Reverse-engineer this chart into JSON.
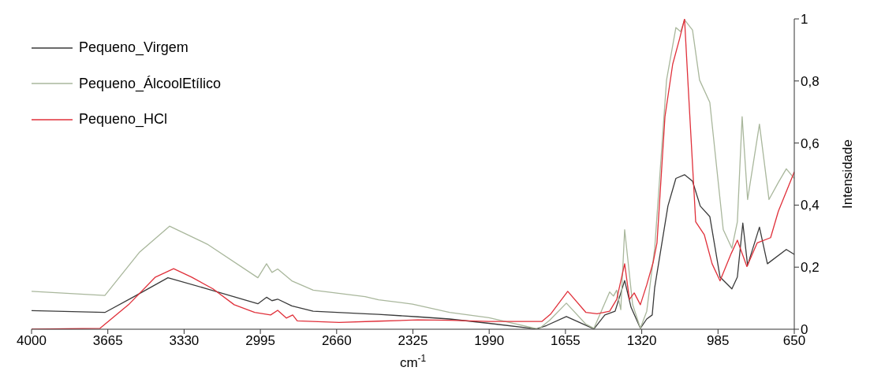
{
  "chart_data": {
    "type": "line",
    "xlabel": "cm$^{-1}$",
    "ylabel": "Intensidade",
    "xlim": [
      4000,
      650
    ],
    "xticks": [
      4000,
      3665,
      3330,
      2995,
      2660,
      2325,
      1990,
      1655,
      1320,
      985,
      650
    ],
    "ylim": [
      0,
      1
    ],
    "yticks": [
      0,
      {
        "value": 0.2,
        "label": "0,2"
      },
      {
        "value": 0.4,
        "label": "0,4"
      },
      {
        "value": 0.6,
        "label": "0,6"
      },
      {
        "value": 0.8,
        "label": "0,8"
      },
      1
    ],
    "legend": "top left",
    "grid": false,
    "marker": "none",
    "line_style": "solid",
    "series": [
      {
        "name": "Pequeno_Virgem",
        "color": "#3a3a3a",
        "x": [
          4000,
          3678,
          3550,
          3401,
          3228,
          3006,
          2968,
          2944,
          2919,
          2857,
          2763,
          2535,
          2476,
          2303,
          2164,
          1991,
          1783,
          1738,
          1651,
          1551,
          1530,
          1482,
          1437,
          1395,
          1367,
          1326,
          1298,
          1274,
          1263,
          1205,
          1170,
          1132,
          1097,
          1063,
          1021,
          976,
          924,
          900,
          876,
          855,
          803,
          768,
          685,
          650
        ],
        "values": [
          0.06,
          0.054,
          0.105,
          0.166,
          0.13,
          0.082,
          0.103,
          0.092,
          0.097,
          0.075,
          0.058,
          0.05,
          0.048,
          0.04,
          0.033,
          0.019,
          0.001,
          0.012,
          0.041,
          0.008,
          0.001,
          0.046,
          0.058,
          0.157,
          0.071,
          0.003,
          0.033,
          0.046,
          0.135,
          0.397,
          0.486,
          0.498,
          0.477,
          0.397,
          0.363,
          0.168,
          0.13,
          0.168,
          0.342,
          0.206,
          0.329,
          0.211,
          0.257,
          0.241
        ]
      },
      {
        "name": "Pequeno_ÁlcoolEtílico",
        "color": "#a9b79c",
        "x": [
          4000,
          3678,
          3525,
          3394,
          3228,
          3006,
          2968,
          2944,
          2919,
          2857,
          2763,
          2535,
          2476,
          2327,
          2164,
          1991,
          1773,
          1724,
          1651,
          1565,
          1530,
          1461,
          1444,
          1430,
          1412,
          1395,
          1360,
          1326,
          1298,
          1263,
          1211,
          1170,
          1149,
          1132,
          1097,
          1066,
          1021,
          962,
          924,
          900,
          879,
          855,
          803,
          761,
          720,
          685,
          650
        ],
        "values": [
          0.122,
          0.109,
          0.249,
          0.332,
          0.274,
          0.166,
          0.211,
          0.183,
          0.194,
          0.156,
          0.126,
          0.105,
          0.095,
          0.081,
          0.054,
          0.037,
          0.0,
          0.029,
          0.084,
          0.016,
          0.003,
          0.12,
          0.107,
          0.126,
          0.063,
          0.321,
          0.08,
          0.003,
          0.058,
          0.261,
          0.803,
          0.972,
          0.959,
          0.997,
          0.964,
          0.803,
          0.731,
          0.321,
          0.261,
          0.346,
          0.685,
          0.418,
          0.661,
          0.418,
          0.473,
          0.517,
          0.486
        ]
      },
      {
        "name": "Pequeno_HCl",
        "color": "#e0303a",
        "x": [
          4000,
          3699,
          3574,
          3456,
          3376,
          3297,
          3203,
          3110,
          3020,
          2950,
          2919,
          2881,
          2853,
          2833,
          2649,
          2476,
          2303,
          2164,
          1991,
          1759,
          1721,
          1645,
          1565,
          1516,
          1461,
          1430,
          1395,
          1374,
          1353,
          1326,
          1298,
          1270,
          1253,
          1218,
          1184,
          1153,
          1132,
          1115,
          1083,
          1045,
          1011,
          976,
          927,
          900,
          858,
          813,
          754,
          720,
          650
        ],
        "values": [
          0.0,
          0.003,
          0.079,
          0.168,
          0.195,
          0.168,
          0.13,
          0.079,
          0.054,
          0.046,
          0.061,
          0.036,
          0.046,
          0.027,
          0.022,
          0.026,
          0.03,
          0.029,
          0.025,
          0.025,
          0.048,
          0.122,
          0.054,
          0.05,
          0.058,
          0.096,
          0.211,
          0.096,
          0.117,
          0.079,
          0.143,
          0.215,
          0.278,
          0.685,
          0.854,
          0.938,
          1.0,
          0.769,
          0.346,
          0.304,
          0.211,
          0.156,
          0.244,
          0.287,
          0.202,
          0.278,
          0.295,
          0.38,
          0.507
        ]
      }
    ]
  }
}
